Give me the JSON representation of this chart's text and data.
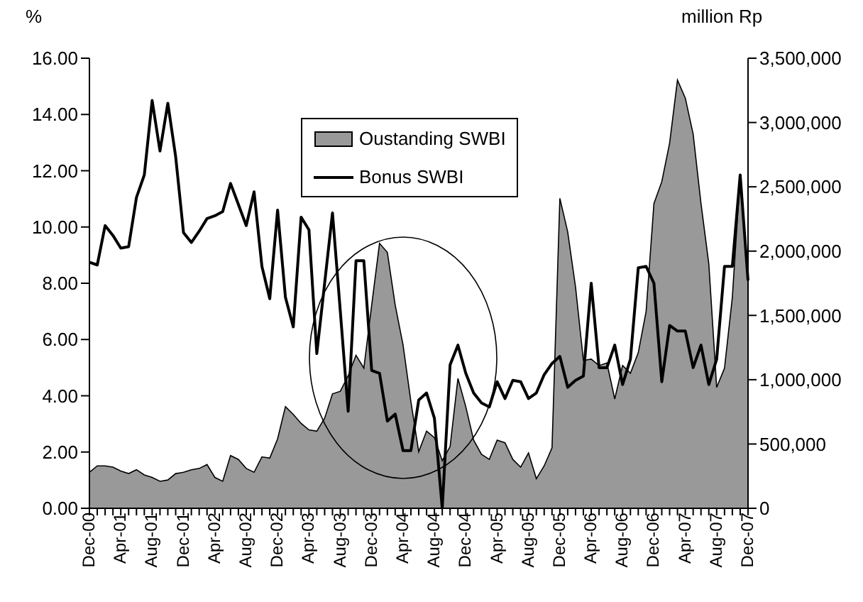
{
  "chart_data": {
    "type": "line",
    "ylabel": "%",
    "y2label": "million Rp",
    "categories": [
      "Dec-00",
      null,
      null,
      null,
      "Apr-01",
      null,
      null,
      null,
      "Aug-01",
      null,
      null,
      null,
      "Dec-01",
      null,
      null,
      null,
      "Apr-02",
      null,
      null,
      null,
      "Aug-02",
      null,
      null,
      null,
      "Dec-02",
      null,
      null,
      null,
      "Apr-03",
      null,
      null,
      null,
      "Aug-03",
      null,
      null,
      null,
      "Dec-03",
      null,
      null,
      null,
      "Apr-04",
      null,
      null,
      null,
      "Aug-04",
      null,
      null,
      null,
      "Dec-04",
      null,
      null,
      null,
      "Apr-05",
      null,
      null,
      null,
      "Aug-05",
      null,
      null,
      null,
      "Dec-05",
      null,
      null,
      null,
      "Apr-06",
      null,
      null,
      null,
      "Aug-06",
      null,
      null,
      null,
      "Dec-06",
      null,
      null,
      null,
      "Apr-07",
      null,
      null,
      null,
      "Aug-07",
      null,
      null,
      null,
      "Dec-07"
    ],
    "series": [
      {
        "name": "Oustanding SWBI",
        "type": "area",
        "axis": "y2",
        "color": "#999999",
        "values": [
          280000,
          330000,
          330000,
          320000,
          290000,
          270000,
          300000,
          260000,
          240000,
          210000,
          220000,
          270000,
          280000,
          300000,
          310000,
          340000,
          240000,
          210000,
          410000,
          380000,
          310000,
          280000,
          400000,
          390000,
          540000,
          790000,
          730000,
          660000,
          610000,
          600000,
          700000,
          890000,
          910000,
          1030000,
          1190000,
          1090000,
          1580000,
          2060000,
          1990000,
          1580000,
          1270000,
          830000,
          440000,
          600000,
          550000,
          370000,
          480000,
          1010000,
          790000,
          530000,
          420000,
          380000,
          530000,
          510000,
          380000,
          320000,
          430000,
          230000,
          330000,
          470000,
          2410000,
          2150000,
          1720000,
          1150000,
          1160000,
          1110000,
          1130000,
          850000,
          1110000,
          1050000,
          1210000,
          1530000,
          2370000,
          2540000,
          2840000,
          3330000,
          3190000,
          2910000,
          2370000,
          1900000,
          940000,
          1090000,
          1640000,
          2590000,
          1750000
        ]
      },
      {
        "name": "Bonus SWBI",
        "type": "line",
        "color": "#000000",
        "values": [
          8.75,
          8.65,
          10.05,
          9.7,
          9.25,
          9.3,
          11.05,
          11.85,
          14.5,
          12.7,
          14.4,
          12.5,
          9.8,
          9.45,
          9.85,
          10.3,
          10.4,
          10.55,
          11.55,
          10.8,
          10.05,
          11.25,
          8.6,
          7.45,
          10.6,
          7.5,
          6.45,
          10.35,
          9.9,
          5.5,
          8.0,
          10.5,
          7.0,
          3.45,
          8.8,
          8.8,
          4.9,
          4.8,
          3.1,
          3.35,
          2.05,
          2.05,
          3.85,
          4.1,
          3.2,
          0.0,
          5.1,
          5.8,
          4.8,
          4.1,
          3.75,
          3.6,
          4.5,
          3.9,
          4.55,
          4.5,
          3.9,
          4.1,
          4.75,
          5.15,
          5.4,
          4.3,
          4.55,
          4.7,
          8.0,
          5.0,
          5.0,
          5.8,
          4.4,
          5.3,
          8.55,
          8.6,
          8.0,
          4.5,
          6.5,
          6.3,
          6.3,
          5.0,
          5.8,
          4.4,
          5.3,
          8.6,
          8.6,
          11.85,
          8.1
        ]
      }
    ],
    "ylim": [
      0,
      16
    ],
    "yticks": [
      {
        "value": 0,
        "label": "0.00"
      },
      {
        "value": 2,
        "label": "2.00"
      },
      {
        "value": 4,
        "label": "4.00"
      },
      {
        "value": 6,
        "label": "6.00"
      },
      {
        "value": 8,
        "label": "8.00"
      },
      {
        "value": 10,
        "label": "10.00"
      },
      {
        "value": 12,
        "label": "12.00"
      },
      {
        "value": 14,
        "label": "14.00"
      },
      {
        "value": 16,
        "label": "16.00"
      }
    ],
    "y2lim": [
      0,
      3500000
    ],
    "y2ticks": [
      0,
      {
        "value": 500000,
        "label": "500,000"
      },
      {
        "value": 1000000,
        "label": "1,000,000"
      },
      {
        "value": 1500000,
        "label": "1,500,000"
      },
      {
        "value": 2000000,
        "label": "2,000,000"
      },
      {
        "value": 2500000,
        "label": "2,500,000"
      },
      {
        "value": 3000000,
        "label": "3,000,000"
      },
      {
        "value": 3500000,
        "label": "3,500,000"
      }
    ],
    "legend": "top",
    "marker": "none",
    "line_style": "solid"
  }
}
